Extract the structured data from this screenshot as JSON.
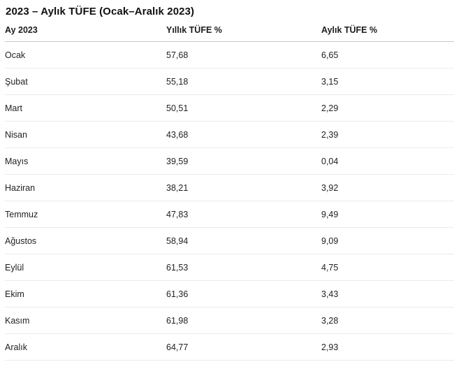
{
  "page": {
    "title": "2023 – Aylık TÜFE (Ocak–Aralık 2023)"
  },
  "table": {
    "columns": [
      "Ay 2023",
      "Yıllık TÜFE %",
      "Aylık TÜFE %"
    ],
    "rows": [
      {
        "month": "Ocak",
        "annual": "57,68",
        "monthly": "6,65"
      },
      {
        "month": "Şubat",
        "annual": "55,18",
        "monthly": "3,15"
      },
      {
        "month": "Mart",
        "annual": "50,51",
        "monthly": "2,29"
      },
      {
        "month": "Nisan",
        "annual": "43,68",
        "monthly": "2,39"
      },
      {
        "month": "Mayıs",
        "annual": "39,59",
        "monthly": "0,04"
      },
      {
        "month": "Haziran",
        "annual": "38,21",
        "monthly": "3,92"
      },
      {
        "month": "Temmuz",
        "annual": "47,83",
        "monthly": "9,49"
      },
      {
        "month": "Ağustos",
        "annual": "58,94",
        "monthly": "9,09"
      },
      {
        "month": "Eylül",
        "annual": "61,53",
        "monthly": "4,75"
      },
      {
        "month": "Ekim",
        "annual": "61,36",
        "monthly": "3,43"
      },
      {
        "month": "Kasım",
        "annual": "61,98",
        "monthly": "3,28"
      },
      {
        "month": "Aralık",
        "annual": "64,77",
        "monthly": "2,93"
      }
    ]
  },
  "colors": {
    "text": "#1c1c1c",
    "header_border": "#c9c9c9",
    "row_border": "#ebebeb",
    "background": "#ffffff"
  },
  "chart_data": {
    "type": "table",
    "title": "2023 – Aylık TÜFE (Ocak–Aralık 2023)",
    "columns": [
      "Ay 2023",
      "Yıllık TÜFE %",
      "Aylık TÜFE %"
    ],
    "categories": [
      "Ocak",
      "Şubat",
      "Mart",
      "Nisan",
      "Mayıs",
      "Haziran",
      "Temmuz",
      "Ağustos",
      "Eylül",
      "Ekim",
      "Kasım",
      "Aralık"
    ],
    "series": [
      {
        "name": "Yıllık TÜFE %",
        "values": [
          57.68,
          55.18,
          50.51,
          43.68,
          39.59,
          38.21,
          47.83,
          58.94,
          61.53,
          61.36,
          61.98,
          64.77
        ]
      },
      {
        "name": "Aylık TÜFE %",
        "values": [
          6.65,
          3.15,
          2.29,
          2.39,
          0.04,
          3.92,
          9.49,
          9.09,
          4.75,
          3.43,
          3.28,
          2.93
        ]
      }
    ]
  }
}
